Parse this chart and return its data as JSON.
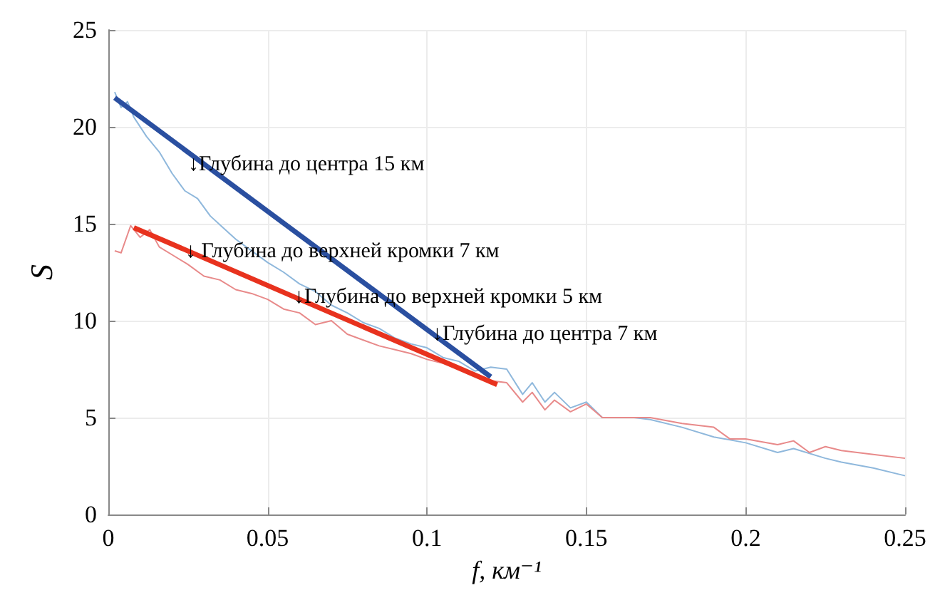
{
  "chart_data": {
    "type": "line",
    "xlabel": "f, км⁻¹",
    "ylabel": "S",
    "xlim": [
      0,
      0.25
    ],
    "ylim": [
      0,
      25
    ],
    "xticks": [
      0,
      0.05,
      0.1,
      0.15,
      0.2,
      0.25
    ],
    "yticks": [
      0,
      5,
      10,
      15,
      20,
      25
    ],
    "grid": true,
    "marker": "none",
    "line_style": "solid",
    "series": [
      {
        "color": "#8fb8dc",
        "x": [
          0.002,
          0.004,
          0.006,
          0.008,
          0.012,
          0.016,
          0.02,
          0.024,
          0.028,
          0.032,
          0.036,
          0.04,
          0.045,
          0.05,
          0.055,
          0.06,
          0.065,
          0.07,
          0.075,
          0.08,
          0.085,
          0.09,
          0.095,
          0.1,
          0.105,
          0.11,
          0.115,
          0.12,
          0.125,
          0.13,
          0.133,
          0.137,
          0.14,
          0.145,
          0.15,
          0.155,
          0.165,
          0.17,
          0.18,
          0.19,
          0.2,
          0.21,
          0.215,
          0.225,
          0.23,
          0.24,
          0.25
        ],
        "values": [
          21.8,
          21.0,
          21.3,
          20.5,
          19.5,
          18.7,
          17.6,
          16.7,
          16.3,
          15.4,
          14.8,
          14.2,
          13.6,
          13.0,
          12.5,
          11.9,
          11.5,
          10.8,
          10.4,
          9.9,
          9.6,
          9.1,
          8.8,
          8.6,
          8.1,
          7.9,
          7.4,
          7.6,
          7.5,
          6.2,
          6.8,
          5.8,
          6.3,
          5.5,
          5.8,
          5.0,
          5.0,
          4.9,
          4.5,
          4.0,
          3.7,
          3.2,
          3.4,
          2.9,
          2.7,
          2.4,
          2.0
        ]
      },
      {
        "color": "#e88a8a",
        "x": [
          0.002,
          0.004,
          0.007,
          0.01,
          0.013,
          0.016,
          0.02,
          0.025,
          0.03,
          0.035,
          0.04,
          0.045,
          0.05,
          0.055,
          0.06,
          0.065,
          0.07,
          0.075,
          0.08,
          0.085,
          0.09,
          0.095,
          0.1,
          0.105,
          0.11,
          0.115,
          0.12,
          0.125,
          0.13,
          0.133,
          0.137,
          0.14,
          0.145,
          0.15,
          0.155,
          0.165,
          0.17,
          0.18,
          0.19,
          0.195,
          0.2,
          0.21,
          0.215,
          0.22,
          0.225,
          0.23,
          0.24,
          0.25
        ],
        "values": [
          13.6,
          13.5,
          14.9,
          14.3,
          14.7,
          13.8,
          13.4,
          12.9,
          12.3,
          12.1,
          11.6,
          11.4,
          11.1,
          10.6,
          10.4,
          9.8,
          10.0,
          9.3,
          9.0,
          8.7,
          8.5,
          8.3,
          8.0,
          7.8,
          7.5,
          7.2,
          6.9,
          6.8,
          5.8,
          6.3,
          5.4,
          5.9,
          5.3,
          5.7,
          5.0,
          5.0,
          5.0,
          4.7,
          4.5,
          3.9,
          3.9,
          3.6,
          3.8,
          3.2,
          3.5,
          3.3,
          3.1,
          2.9
        ]
      },
      {
        "color": "#2a4fa0",
        "x": [
          0.002,
          0.12
        ],
        "values": [
          21.5,
          7.1
        ]
      },
      {
        "color": "#e8321e",
        "x": [
          0.008,
          0.122
        ],
        "values": [
          14.8,
          6.7
        ]
      }
    ],
    "annotations": [
      "↓Глубина до центра 15 км",
      "↓ Глубина до верхней кромки 7 км",
      "↓Глубина до верхней кромки 5 км",
      "↓Глубина до центра 7 км"
    ]
  }
}
